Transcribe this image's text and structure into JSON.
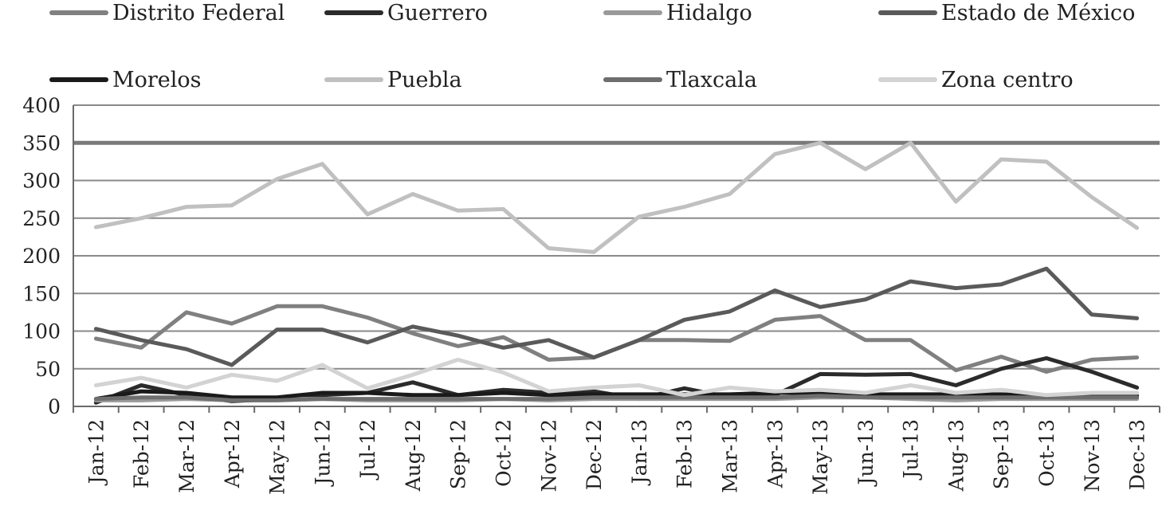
{
  "chart_data": {
    "type": "line",
    "title": "",
    "xlabel": "",
    "ylabel": "",
    "ylim": [
      0,
      400
    ],
    "yticks": [
      "0",
      "50",
      "100",
      "150",
      "200",
      "250",
      "300",
      "350",
      "400"
    ],
    "grid": "horizontal",
    "legend_position": "top",
    "categories": [
      "Jan-12",
      "Feb-12",
      "Mar-12",
      "Apr-12",
      "May-12",
      "Jun-12",
      "Jul-12",
      "Aug-12",
      "Sep-12",
      "Oct-12",
      "Nov-12",
      "Dec-12",
      "Jan-13",
      "Feb-13",
      "Mar-13",
      "Apr-13",
      "May-13",
      "Jun-13",
      "Jul-13",
      "Aug-13",
      "Sep-13",
      "Oct-13",
      "Nov-13",
      "Dec-13"
    ],
    "series": [
      {
        "name": "Distrito Federal",
        "color": "#808080",
        "width": 5,
        "values": [
          90,
          78,
          125,
          110,
          133,
          133,
          118,
          97,
          80,
          92,
          62,
          65,
          88,
          88,
          87,
          115,
          120,
          88,
          88,
          48,
          66,
          46,
          62,
          65
        ]
      },
      {
        "name": "Guerrero",
        "color": "#2b2b2b",
        "width": 5,
        "values": [
          5,
          28,
          15,
          7,
          10,
          15,
          18,
          32,
          15,
          22,
          18,
          20,
          10,
          24,
          12,
          15,
          43,
          42,
          43,
          28,
          50,
          64,
          46,
          25
        ]
      },
      {
        "name": "Hidalgo",
        "color": "#9a9a9a",
        "width": 5,
        "values": [
          8,
          8,
          10,
          8,
          10,
          10,
          8,
          8,
          8,
          10,
          8,
          10,
          10,
          10,
          10,
          10,
          12,
          12,
          10,
          8,
          10,
          10,
          10,
          10
        ]
      },
      {
        "name": "Estado de México",
        "color": "#5a5a5a",
        "width": 5,
        "values": [
          103,
          88,
          76,
          55,
          102,
          102,
          85,
          106,
          94,
          78,
          88,
          65,
          88,
          115,
          126,
          154,
          132,
          142,
          166,
          157,
          162,
          183,
          122,
          117
        ]
      },
      {
        "name": "Morelos",
        "color": "#1a1a1a",
        "width": 5,
        "values": [
          10,
          20,
          18,
          12,
          12,
          18,
          18,
          15,
          15,
          18,
          15,
          16,
          16,
          16,
          16,
          18,
          18,
          16,
          16,
          16,
          16,
          14,
          14,
          14
        ]
      },
      {
        "name": "Puebla",
        "color": "#c0c0c0",
        "width": 5,
        "values": [
          238,
          250,
          265,
          267,
          302,
          322,
          255,
          282,
          260,
          262,
          210,
          205,
          252,
          265,
          282,
          335,
          350,
          315,
          350,
          272,
          328,
          325,
          278,
          237
        ]
      },
      {
        "name": "Tlaxcala",
        "color": "#6e6e6e",
        "width": 5,
        "values": [
          10,
          12,
          12,
          8,
          8,
          10,
          10,
          10,
          10,
          10,
          10,
          12,
          12,
          12,
          12,
          12,
          14,
          12,
          12,
          12,
          12,
          12,
          12,
          12
        ]
      },
      {
        "name": "Zona centro",
        "color": "#d3d3d3",
        "width": 5,
        "values": [
          28,
          38,
          25,
          42,
          34,
          55,
          24,
          42,
          62,
          45,
          20,
          25,
          28,
          15,
          25,
          20,
          22,
          18,
          28,
          18,
          22,
          15,
          18,
          18
        ]
      }
    ],
    "reference_line": {
      "value": 350,
      "color": "#7a7a7a"
    }
  }
}
